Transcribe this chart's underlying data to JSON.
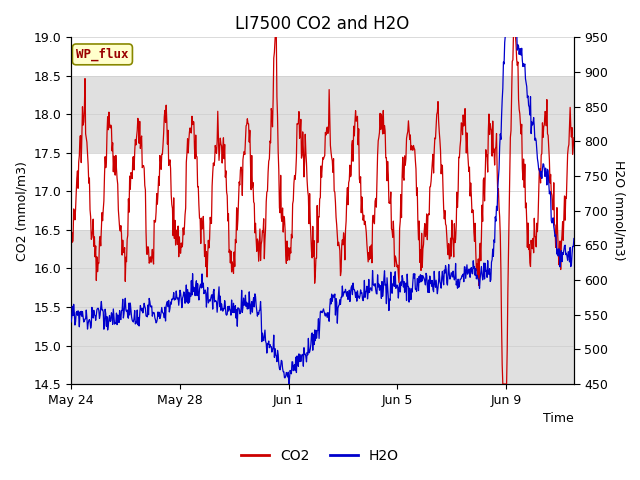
{
  "title": "LI7500 CO2 and H2O",
  "xlabel": "Time",
  "ylabel_left": "CO2 (mmol/m3)",
  "ylabel_right": "H2O (mmol/m3)",
  "annotation": "WP_flux",
  "ylim_left": [
    14.5,
    19.0
  ],
  "ylim_right": [
    450,
    950
  ],
  "yticks_left": [
    14.5,
    15.0,
    15.5,
    16.0,
    16.5,
    17.0,
    17.5,
    18.0,
    18.5,
    19.0
  ],
  "yticks_right": [
    450,
    500,
    550,
    600,
    650,
    700,
    750,
    800,
    850,
    900,
    950
  ],
  "xtick_days": [
    0,
    4,
    8,
    12,
    16
  ],
  "xtick_labels": [
    "May 24",
    "May 28",
    "Jun 1",
    "Jun 5",
    "Jun 9"
  ],
  "xlim": [
    0,
    18.5
  ],
  "bg_bands": [
    {
      "ymin": 14.5,
      "ymax": 16.5,
      "color": "#e0e0e0"
    },
    {
      "ymin": 17.5,
      "ymax": 18.5,
      "color": "#e0e0e0"
    }
  ],
  "co2_color": "#cc0000",
  "h2o_color": "#0000cc",
  "legend_co2": "CO2",
  "legend_h2o": "H2O",
  "title_fontsize": 12,
  "axis_label_fontsize": 9,
  "tick_fontsize": 9,
  "annotation_fontsize": 9,
  "annotation_bg": "#ffffcc",
  "annotation_fg": "#990000",
  "annotation_edge": "#888800"
}
